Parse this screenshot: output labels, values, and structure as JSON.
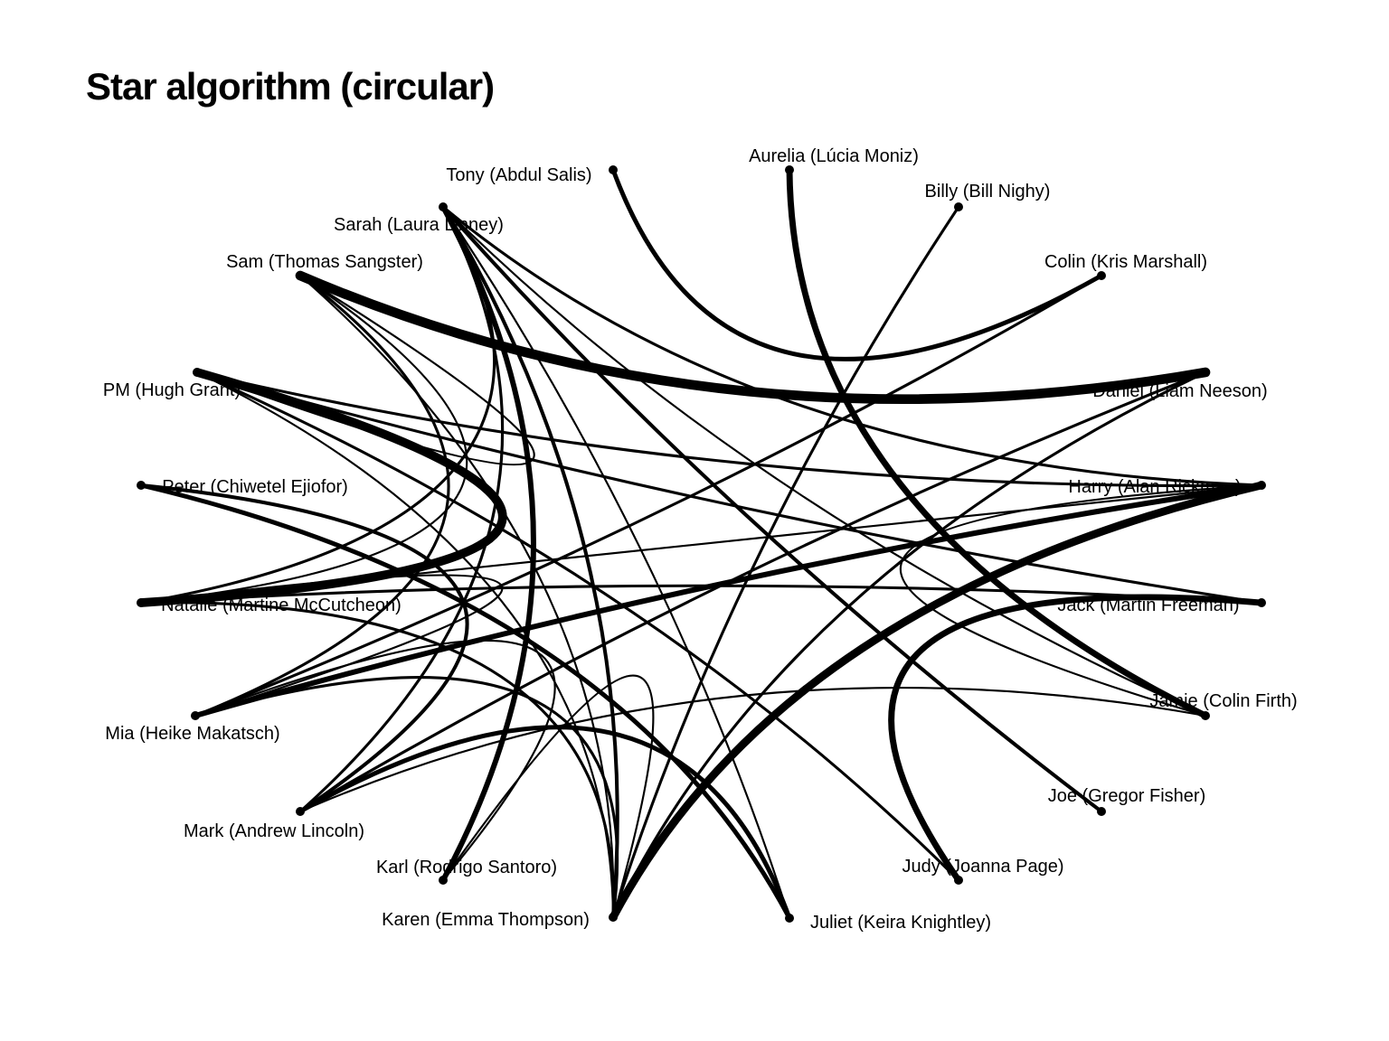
{
  "title": "Star algorithm (circular)",
  "colors": {
    "edge": "#000000",
    "node": "#000000",
    "background": "#ffffff"
  },
  "nodes": [
    {
      "id": "aurelia",
      "label": "Aurelia (Lúcia Moniz)"
    },
    {
      "id": "billy",
      "label": "Billy (Bill Nighy)"
    },
    {
      "id": "colin",
      "label": "Colin (Kris Marshall)"
    },
    {
      "id": "daniel",
      "label": "Daniel (Liam Neeson)"
    },
    {
      "id": "harry",
      "label": "Harry (Alan Rickman)"
    },
    {
      "id": "jack",
      "label": "Jack (Martin Freeman)"
    },
    {
      "id": "jamie",
      "label": "Jamie (Colin Firth)"
    },
    {
      "id": "joe",
      "label": "Joe (Gregor Fisher)"
    },
    {
      "id": "judy",
      "label": "Judy (Joanna Page)"
    },
    {
      "id": "juliet",
      "label": "Juliet (Keira Knightley)"
    },
    {
      "id": "karen",
      "label": "Karen (Emma Thompson)"
    },
    {
      "id": "karl",
      "label": "Karl (Rodrigo Santoro)"
    },
    {
      "id": "mark",
      "label": "Mark (Andrew Lincoln)"
    },
    {
      "id": "mia",
      "label": "Mia (Heike Makatsch)"
    },
    {
      "id": "natalie",
      "label": "Natalie (Martine McCutcheon)"
    },
    {
      "id": "peter",
      "label": "Peter (Chiwetel Ejiofor)"
    },
    {
      "id": "pm",
      "label": "PM (Hugh Grant)"
    },
    {
      "id": "sam",
      "label": "Sam (Thomas Sangster)"
    },
    {
      "id": "sarah",
      "label": "Sarah (Laura Linney)"
    },
    {
      "id": "tony",
      "label": "Tony (Abdul Salis)"
    }
  ],
  "edges": [
    {
      "source": "sam",
      "target": "daniel",
      "weight": 10
    },
    {
      "source": "pm",
      "target": "natalie",
      "weight": 9
    },
    {
      "source": "harry",
      "target": "karen",
      "weight": 8
    },
    {
      "source": "aurelia",
      "target": "jamie",
      "weight": 6
    },
    {
      "source": "jack",
      "target": "judy",
      "weight": 6
    },
    {
      "source": "mia",
      "target": "harry",
      "weight": 5
    },
    {
      "source": "sarah",
      "target": "karl",
      "weight": 5
    },
    {
      "source": "peter",
      "target": "juliet",
      "weight": 4
    },
    {
      "source": "mark",
      "target": "juliet",
      "weight": 4
    },
    {
      "source": "tony",
      "target": "colin",
      "weight": 4
    },
    {
      "source": "sarah",
      "target": "joe",
      "weight": 3
    },
    {
      "source": "sarah",
      "target": "karen",
      "weight": 3
    },
    {
      "source": "mark",
      "target": "peter",
      "weight": 3
    },
    {
      "source": "billy",
      "target": "karen",
      "weight": 2
    },
    {
      "source": "colin",
      "target": "mia",
      "weight": 2
    },
    {
      "source": "daniel",
      "target": "karen",
      "weight": 2
    },
    {
      "source": "daniel",
      "target": "mark",
      "weight": 2
    },
    {
      "source": "sam",
      "target": "mia",
      "weight": 2
    },
    {
      "source": "sarah",
      "target": "mark",
      "weight": 2
    },
    {
      "source": "sarah",
      "target": "natalie",
      "weight": 2
    },
    {
      "source": "sarah",
      "target": "harry",
      "weight": 2
    },
    {
      "source": "pm",
      "target": "harry",
      "weight": 2
    },
    {
      "source": "pm",
      "target": "jack",
      "weight": 2
    },
    {
      "source": "pm",
      "target": "judy",
      "weight": 2
    },
    {
      "source": "natalie",
      "target": "jack",
      "weight": 2
    },
    {
      "source": "natalie",
      "target": "karen",
      "weight": 2
    },
    {
      "source": "mia",
      "target": "karen",
      "weight": 2
    },
    {
      "source": "sam",
      "target": "natalie",
      "weight": 1
    },
    {
      "source": "sam",
      "target": "pm",
      "weight": 1
    },
    {
      "source": "sarah",
      "target": "juliet",
      "weight": 1
    },
    {
      "source": "sarah",
      "target": "jamie",
      "weight": 1
    },
    {
      "source": "harry",
      "target": "jamie",
      "weight": 1
    },
    {
      "source": "natalie",
      "target": "mia",
      "weight": 1
    },
    {
      "source": "mia",
      "target": "karl",
      "weight": 1
    },
    {
      "source": "mark",
      "target": "jamie",
      "weight": 1
    },
    {
      "source": "karl",
      "target": "karen",
      "weight": 1
    },
    {
      "source": "sam",
      "target": "karen",
      "weight": 1
    },
    {
      "source": "pm",
      "target": "karen",
      "weight": 1
    },
    {
      "source": "natalie",
      "target": "harry",
      "weight": 1
    }
  ]
}
